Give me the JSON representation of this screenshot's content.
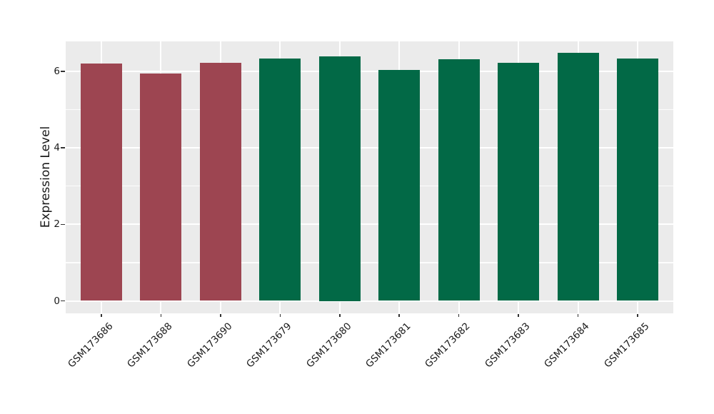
{
  "chart_data": {
    "type": "bar",
    "title": "",
    "xlabel": "",
    "ylabel": "Expression Level",
    "categories": [
      "GSM173686",
      "GSM173688",
      "GSM173690",
      "GSM173679",
      "GSM173680",
      "GSM173681",
      "GSM173682",
      "GSM173683",
      "GSM173684",
      "GSM173685"
    ],
    "values": [
      6.21,
      5.95,
      6.23,
      6.34,
      6.39,
      6.04,
      6.31,
      6.23,
      6.48,
      6.34
    ],
    "bar_colors": [
      "#9D4551",
      "#9D4551",
      "#9D4551",
      "#026946",
      "#026946",
      "#026946",
      "#026946",
      "#026946",
      "#026946",
      "#026946"
    ],
    "yticks": [
      0,
      2,
      4,
      6
    ],
    "ytick_labels": [
      "0",
      "2",
      "4",
      "6"
    ],
    "gridline_values": [
      0,
      1,
      2,
      3,
      4,
      5,
      6
    ],
    "ylim": [
      -0.33,
      6.78
    ],
    "grid": "on",
    "legend": "none",
    "panel_bg": "#EBEBEB",
    "gridline_color": "#FFFFFF",
    "tick_color": "#333333",
    "text_color": "#1A1A1A"
  }
}
